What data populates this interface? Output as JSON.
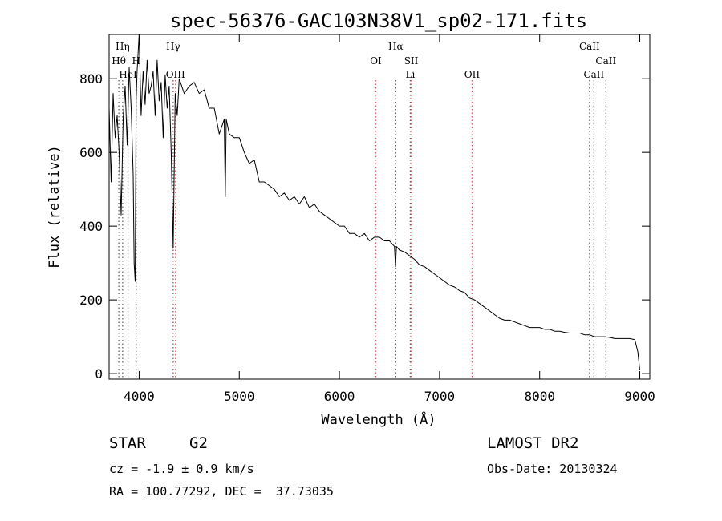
{
  "chart_data": {
    "type": "line",
    "title": "spec-56376-GAC103N38V1_sp02-171.fits",
    "xlabel": "Wavelength (Å)",
    "ylabel": "Flux (relative)",
    "xlim": [
      3700,
      9100
    ],
    "ylim": [
      -15,
      920
    ],
    "x_ticks": [
      4000,
      5000,
      6000,
      7000,
      8000,
      9000
    ],
    "y_ticks": [
      0,
      200,
      400,
      600,
      800
    ],
    "grid": false,
    "series": [
      {
        "x": [
          3700,
          3720,
          3740,
          3760,
          3780,
          3800,
          3820,
          3840,
          3860,
          3880,
          3900,
          3920,
          3940,
          3950,
          3960,
          3970,
          3980,
          4000,
          4020,
          4040,
          4060,
          4080,
          4100,
          4120,
          4140,
          4160,
          4180,
          4200,
          4220,
          4240,
          4260,
          4280,
          4300,
          4320,
          4340,
          4360,
          4380,
          4400,
          4450,
          4500,
          4550,
          4600,
          4650,
          4700,
          4750,
          4800,
          4850,
          4860,
          4870,
          4900,
          4950,
          5000,
          5050,
          5100,
          5150,
          5200,
          5250,
          5300,
          5350,
          5400,
          5450,
          5500,
          5550,
          5600,
          5650,
          5700,
          5750,
          5800,
          5850,
          5900,
          5950,
          6000,
          6050,
          6100,
          6150,
          6200,
          6250,
          6300,
          6350,
          6400,
          6450,
          6500,
          6550,
          6560,
          6570,
          6600,
          6650,
          6700,
          6750,
          6800,
          6850,
          6900,
          6950,
          7000,
          7050,
          7100,
          7150,
          7200,
          7250,
          7300,
          7350,
          7400,
          7450,
          7500,
          7550,
          7600,
          7650,
          7700,
          7750,
          7800,
          7850,
          7900,
          7950,
          8000,
          8050,
          8100,
          8150,
          8200,
          8250,
          8300,
          8350,
          8400,
          8450,
          8500,
          8550,
          8600,
          8650,
          8700,
          8750,
          8800,
          8850,
          8900,
          8950,
          8980,
          9000
        ],
        "y": [
          720,
          520,
          760,
          640,
          700,
          600,
          430,
          690,
          780,
          620,
          830,
          720,
          540,
          300,
          250,
          740,
          820,
          920,
          700,
          820,
          730,
          850,
          760,
          780,
          820,
          700,
          850,
          740,
          790,
          640,
          810,
          720,
          780,
          600,
          340,
          760,
          700,
          800,
          760,
          780,
          790,
          760,
          770,
          720,
          720,
          650,
          690,
          480,
          690,
          650,
          640,
          640,
          600,
          570,
          580,
          520,
          520,
          510,
          500,
          480,
          490,
          470,
          480,
          460,
          480,
          450,
          460,
          440,
          430,
          420,
          410,
          400,
          400,
          380,
          380,
          370,
          380,
          360,
          370,
          370,
          360,
          360,
          345,
          290,
          345,
          335,
          330,
          320,
          310,
          295,
          290,
          280,
          270,
          260,
          250,
          240,
          235,
          225,
          220,
          205,
          200,
          190,
          180,
          170,
          160,
          150,
          145,
          145,
          140,
          135,
          130,
          125,
          125,
          125,
          120,
          120,
          115,
          115,
          112,
          110,
          110,
          110,
          105,
          105,
          100,
          100,
          100,
          98,
          95,
          95,
          95,
          95,
          92,
          60,
          10
        ]
      }
    ],
    "lines": [
      {
        "label": "Hη",
        "x": 3835,
        "color": "#666666",
        "row": 0
      },
      {
        "label": "Hθ",
        "x": 3797,
        "color": "#666666",
        "row": 1
      },
      {
        "label": "H",
        "x": 3970,
        "color": "#666666",
        "row": 1
      },
      {
        "label": "HeI",
        "x": 3889,
        "color": "#666666",
        "row": 2
      },
      {
        "label": "Hγ",
        "x": 4340,
        "color": "#666666",
        "row": 0
      },
      {
        "label": "OIII",
        "x": 4363,
        "color": "#e06060",
        "row": 2
      },
      {
        "label": "Hα",
        "x": 6563,
        "color": "#666666",
        "row": 0
      },
      {
        "label": "OI",
        "x": 6364,
        "color": "#e06060",
        "row": 1
      },
      {
        "label": "SII",
        "x": 6717,
        "color": "#e06060",
        "row": 1
      },
      {
        "label": "Li",
        "x": 6708,
        "color": "#666666",
        "row": 2
      },
      {
        "label": "OII",
        "x": 7325,
        "color": "#e06060",
        "row": 2
      },
      {
        "label": "CaII",
        "x": 8498,
        "color": "#666666",
        "row": 0
      },
      {
        "label": "CaII",
        "x": 8662,
        "color": "#666666",
        "row": 1
      },
      {
        "label": "CaII",
        "x": 8542,
        "color": "#666666",
        "row": 2
      }
    ]
  },
  "footer": {
    "object_type": "STAR",
    "subclass": "G2",
    "survey": "LAMOST DR2",
    "velocity": "cz = -1.9 ± 0.9 km/s",
    "obs_date": "Obs-Date: 20130324",
    "coords": "RA = 100.77292, DEC =  37.73035"
  }
}
